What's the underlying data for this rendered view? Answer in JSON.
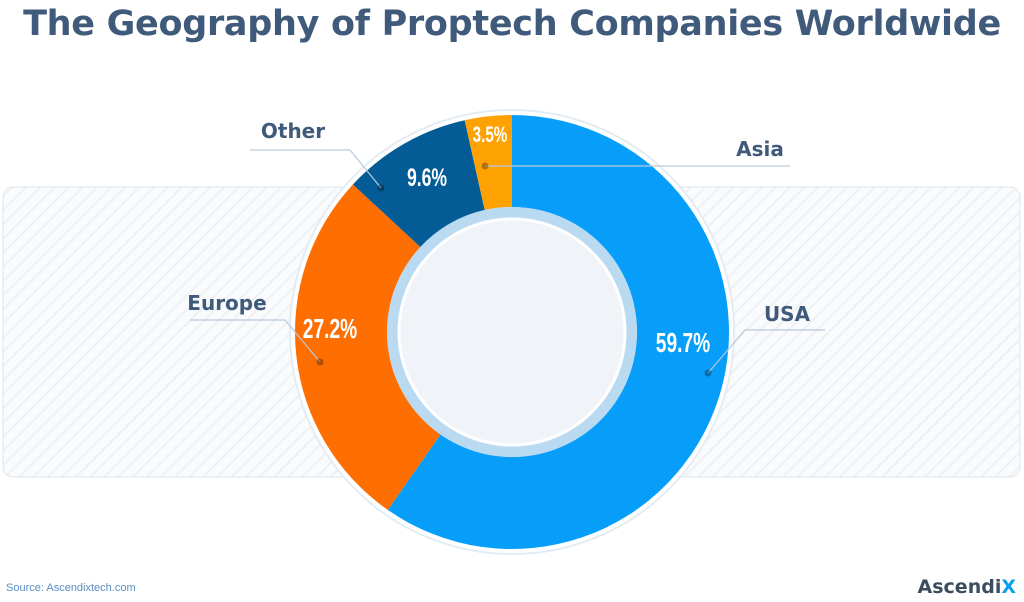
{
  "title": "The Geography of Proptech Companies Worldwide",
  "source": "Source: Ascendixtech.com",
  "logo": {
    "text": "Ascendi",
    "accent": "X"
  },
  "chart_data": {
    "type": "pie",
    "variant": "donut",
    "title": "The Geography of Proptech Companies Worldwide",
    "slices": [
      {
        "name": "USA",
        "value": 59.7,
        "label": "59.7%",
        "color": "#069ef9"
      },
      {
        "name": "Europe",
        "value": 27.2,
        "label": "27.2%",
        "color": "#fe6e00"
      },
      {
        "name": "Other",
        "value": 9.6,
        "label": "9.6%",
        "color": "#045c97"
      },
      {
        "name": "Asia",
        "value": 3.5,
        "label": "3.5%",
        "color": "#fea203"
      }
    ],
    "start": "top",
    "direction": "clockwise",
    "legend": "callout labels"
  }
}
